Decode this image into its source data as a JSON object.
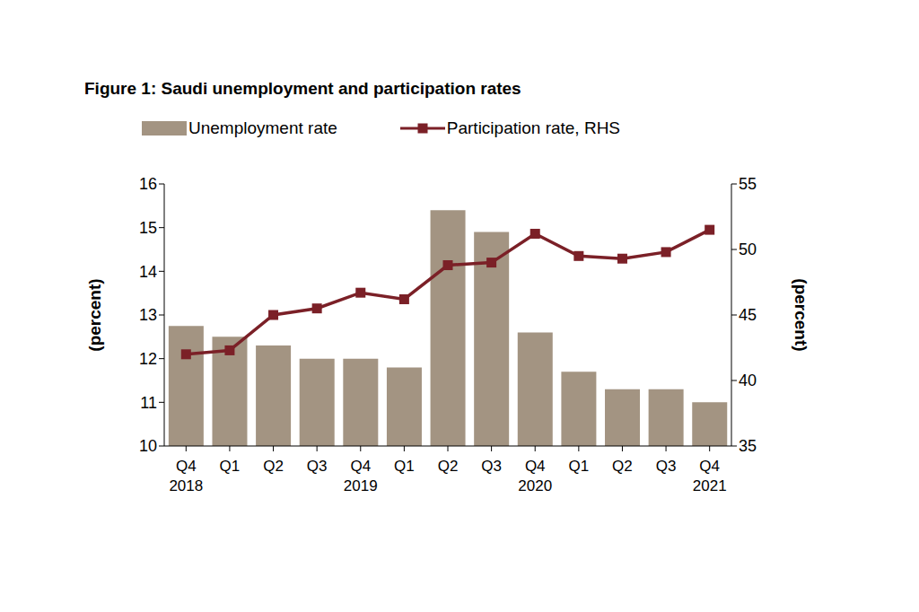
{
  "chart_data": {
    "type": "bar",
    "title": "Figure 1: Saudi unemployment and participation rates",
    "categories": [
      "Q4 2018",
      "Q1",
      "Q2",
      "Q3",
      "Q4 2019",
      "Q1",
      "Q2",
      "Q3",
      "Q4 2020",
      "Q1",
      "Q2",
      "Q3",
      "Q4 2021"
    ],
    "series": [
      {
        "name": "Unemployment rate",
        "type": "bar",
        "color": "#a39482",
        "values": [
          12.75,
          12.5,
          12.3,
          12.0,
          12.0,
          11.8,
          15.4,
          14.9,
          12.6,
          11.7,
          11.3,
          11.3,
          11.0
        ]
      },
      {
        "name": "Participation rate, RHS",
        "type": "line",
        "axis": "y2",
        "color": "#7b2027",
        "marker": "square",
        "values": [
          42.0,
          42.3,
          45.0,
          45.5,
          46.7,
          46.2,
          48.8,
          49.0,
          51.2,
          49.5,
          49.3,
          49.8,
          51.5
        ]
      }
    ],
    "ylabel": "(percent)",
    "y2label": "(percent)",
    "ylim": [
      10,
      16
    ],
    "yticks": [
      10,
      11,
      12,
      13,
      14,
      15,
      16
    ],
    "y2lim": [
      35,
      55
    ],
    "y2ticks": [
      35,
      40,
      45,
      50,
      55
    ],
    "grid": false,
    "legend": "top"
  }
}
